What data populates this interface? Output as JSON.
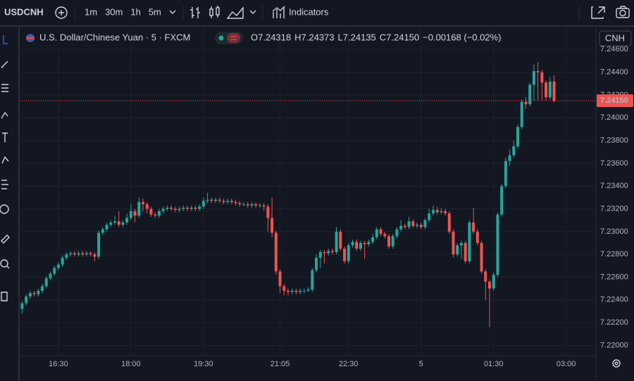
{
  "toolbar": {
    "symbol": "USDCNH",
    "intervals": [
      "1m",
      "30m",
      "1h",
      "5m"
    ],
    "active_interval": "5m",
    "indicators": "Indicators"
  },
  "chart_data": {
    "type": "candlestick",
    "title": "U.S. Dollar/Chinese Yuan · 5 · FXCM",
    "legend": [
      {
        "key": "O",
        "value": "7.24318"
      },
      {
        "key": "H",
        "value": "7.24373"
      },
      {
        "key": "L",
        "value": "7.24135"
      },
      {
        "key": "C",
        "value": "7.24150"
      }
    ],
    "change": "−0.00168 (−0.02%)",
    "currency": "CNH",
    "last_price_label": "7.24150",
    "up_color": "#26a69a",
    "down_color": "#ef5350",
    "x": [
      "15:45",
      "15:50",
      "15:55",
      "16:00",
      "16:05",
      "16:10",
      "16:15",
      "16:20",
      "16:25",
      "16:30",
      "16:35",
      "16:40",
      "16:45",
      "16:50",
      "16:55",
      "17:00",
      "17:05",
      "17:10",
      "17:15",
      "17:20",
      "17:25",
      "17:30",
      "17:35",
      "17:40",
      "17:45",
      "17:50",
      "17:55",
      "18:00",
      "18:05",
      "18:10",
      "18:15",
      "18:20",
      "18:25",
      "18:30",
      "18:35",
      "18:40",
      "18:45",
      "18:50",
      "18:55",
      "19:00",
      "19:05",
      "19:10",
      "19:15",
      "19:20",
      "19:25",
      "19:30",
      "19:35",
      "19:40",
      "19:45",
      "19:50",
      "19:55",
      "20:00",
      "20:05",
      "20:10",
      "20:15",
      "20:20",
      "20:25",
      "20:30",
      "20:35",
      "20:40",
      "20:45",
      "20:50",
      "20:55",
      "21:00",
      "21:05",
      "21:10",
      "21:15",
      "21:20",
      "21:25",
      "21:30",
      "21:35",
      "21:40",
      "21:45",
      "21:50",
      "21:55",
      "22:00",
      "22:05",
      "22:10",
      "22:15",
      "22:20",
      "22:25",
      "22:30",
      "22:35",
      "22:40",
      "22:45",
      "22:50",
      "22:55",
      "23:00",
      "23:05",
      "23:10",
      "23:15",
      "23:20",
      "23:25",
      "23:30",
      "23:35",
      "23:40",
      "23:45",
      "23:50",
      "23:55",
      "00:00",
      "00:05",
      "00:10",
      "00:15",
      "00:20",
      "00:25",
      "00:30",
      "00:35",
      "00:40",
      "00:45",
      "00:50",
      "00:55",
      "01:00",
      "01:05",
      "01:10",
      "01:15",
      "01:20",
      "01:25",
      "01:30",
      "01:35",
      "01:40",
      "01:45",
      "01:50",
      "01:55",
      "02:00",
      "02:05",
      "02:10",
      "02:15",
      "02:20",
      "02:25",
      "02:30",
      "02:35",
      "02:40",
      "02:45"
    ],
    "open": [
      7.2232,
      7.2237,
      7.2243,
      7.2246,
      7.2245,
      7.2248,
      7.2252,
      7.2259,
      7.2263,
      7.2268,
      7.2271,
      7.2277,
      7.228,
      7.2281,
      7.228,
      7.2281,
      7.228,
      7.2281,
      7.228,
      7.2278,
      7.2299,
      7.2302,
      7.2306,
      7.2308,
      7.2309,
      7.2306,
      7.2308,
      7.2312,
      7.2318,
      7.2314,
      7.2326,
      7.2324,
      7.232,
      7.2315,
      7.2314,
      7.2318,
      7.232,
      7.2321,
      7.232,
      7.2319,
      7.232,
      7.2321,
      7.232,
      7.2321,
      7.232,
      7.2322,
      7.2327,
      7.2328,
      7.2327,
      7.2328,
      7.2327,
      7.2326,
      7.2327,
      7.2326,
      7.2325,
      7.2324,
      7.2324,
      7.2323,
      7.2324,
      7.2323,
      7.2323,
      7.2322,
      7.2312,
      7.2299,
      7.2265,
      7.2252,
      7.2248,
      7.2247,
      7.2248,
      7.2247,
      7.2248,
      7.2248,
      7.2249,
      7.2266,
      7.2277,
      7.2282,
      7.2281,
      7.2283,
      7.2282,
      7.23,
      7.2285,
      7.2274,
      7.2288,
      7.2291,
      7.2285,
      7.229,
      7.2289,
      7.2291,
      7.2295,
      7.2302,
      7.2298,
      7.2296,
      7.2287,
      7.2296,
      7.2302,
      7.2305,
      7.2304,
      7.2309,
      7.2305,
      7.2306,
      7.2304,
      7.231,
      7.2316,
      7.2319,
      7.2317,
      7.2318,
      7.2316,
      7.23,
      7.228,
      7.2288,
      7.229,
      7.2274,
      7.2308,
      7.23,
      7.229,
      7.2265,
      7.2256,
      7.225,
      7.2262,
      7.2315,
      7.234,
      7.2362,
      7.2367,
      7.2375,
      7.2392,
      7.2414,
      7.2412,
      7.2429,
      7.2441,
      7.244,
      7.2431,
      7.2418,
      7.24318
    ],
    "high": [
      7.2239,
      7.2245,
      7.2248,
      7.2248,
      7.225,
      7.2254,
      7.2261,
      7.2265,
      7.227,
      7.2273,
      7.2279,
      7.2282,
      7.2283,
      7.2283,
      7.2283,
      7.2283,
      7.2283,
      7.2283,
      7.2282,
      7.2301,
      7.2304,
      7.2308,
      7.231,
      7.2314,
      7.2318,
      7.231,
      7.2316,
      7.2324,
      7.232,
      7.233,
      7.2329,
      7.2326,
      7.2322,
      7.2317,
      7.232,
      7.2322,
      7.2323,
      7.2323,
      7.2322,
      7.2322,
      7.2323,
      7.2323,
      7.2323,
      7.2323,
      7.2324,
      7.233,
      7.2334,
      7.233,
      7.233,
      7.233,
      7.2329,
      7.2329,
      7.2329,
      7.2328,
      7.2327,
      7.2326,
      7.2326,
      7.2326,
      7.2326,
      7.2325,
      7.2325,
      7.2324,
      7.233,
      7.2301,
      7.2267,
      7.2254,
      7.225,
      7.225,
      7.225,
      7.225,
      7.225,
      7.2251,
      7.2268,
      7.228,
      7.2284,
      7.2284,
      7.2285,
      7.2285,
      7.2304,
      7.2302,
      7.2287,
      7.229,
      7.2293,
      7.2293,
      7.2292,
      7.2292,
      7.2293,
      7.2298,
      7.2304,
      7.2304,
      7.23,
      7.2298,
      7.2298,
      7.2304,
      7.231,
      7.2307,
      7.2313,
      7.2311,
      7.2308,
      7.2308,
      7.2312,
      7.232,
      7.2323,
      7.2322,
      7.2321,
      7.232,
      7.2318,
      7.2302,
      7.229,
      7.2292,
      7.2292,
      7.231,
      7.2321,
      7.2302,
      7.2292,
      7.2267,
      7.2258,
      7.2264,
      7.2317,
      7.2342,
      7.2365,
      7.2372,
      7.238,
      7.2394,
      7.2416,
      7.2418,
      7.2431,
      7.2447,
      7.2449,
      7.2442,
      7.2433,
      7.2436,
      7.24373
    ],
    "low": [
      7.2228,
      7.2235,
      7.2241,
      7.2243,
      7.2243,
      7.2246,
      7.225,
      7.2257,
      7.2261,
      7.2266,
      7.2269,
      7.2275,
      7.2278,
      7.2278,
      7.2278,
      7.2278,
      7.2278,
      7.2278,
      7.2274,
      7.2276,
      7.2297,
      7.23,
      7.2304,
      7.2306,
      7.2304,
      7.2304,
      7.2306,
      7.231,
      7.2308,
      7.2312,
      7.2318,
      7.2316,
      7.2313,
      7.2312,
      7.2312,
      7.2316,
      7.2318,
      7.2318,
      7.2317,
      7.2317,
      7.2318,
      7.2318,
      7.2318,
      7.2318,
      7.2318,
      7.232,
      7.2325,
      7.2325,
      7.2325,
      7.2325,
      7.2324,
      7.2324,
      7.2324,
      7.2323,
      7.2322,
      7.2322,
      7.2321,
      7.2321,
      7.2321,
      7.2321,
      7.2318,
      7.23,
      7.2295,
      7.2262,
      7.2246,
      7.2244,
      7.2244,
      7.2245,
      7.2245,
      7.2245,
      7.2246,
      7.2247,
      7.2247,
      7.2264,
      7.2268,
      7.2272,
      7.2279,
      7.228,
      7.228,
      7.2283,
      7.2272,
      7.2272,
      7.2286,
      7.2283,
      7.2283,
      7.2276,
      7.2287,
      7.2289,
      7.2293,
      7.2296,
      7.2294,
      7.2285,
      7.2285,
      7.2294,
      7.23,
      7.2302,
      7.2302,
      7.2303,
      7.2303,
      7.2302,
      7.2302,
      7.2308,
      7.2314,
      7.2315,
      7.2315,
      7.2314,
      7.2298,
      7.2277,
      7.2278,
      7.2276,
      7.2272,
      7.2272,
      7.2298,
      7.2288,
      7.2263,
      7.224,
      7.2216,
      7.2248,
      7.226,
      7.2313,
      7.2338,
      7.2358,
      7.2365,
      7.2373,
      7.239,
      7.2408,
      7.241,
      7.2415,
      7.2415,
      7.2415,
      7.2415,
      7.2416,
      7.24135
    ],
    "close": [
      7.2237,
      7.2243,
      7.2246,
      7.2245,
      7.2248,
      7.2252,
      7.2259,
      7.2263,
      7.2268,
      7.2271,
      7.2277,
      7.228,
      7.2281,
      7.228,
      7.2281,
      7.228,
      7.2281,
      7.228,
      7.2278,
      7.2299,
      7.2302,
      7.2306,
      7.2308,
      7.2309,
      7.2306,
      7.2308,
      7.2312,
      7.2318,
      7.2314,
      7.2326,
      7.2324,
      7.232,
      7.2315,
      7.2314,
      7.2318,
      7.232,
      7.2321,
      7.232,
      7.2319,
      7.232,
      7.2321,
      7.232,
      7.2321,
      7.232,
      7.2322,
      7.2327,
      7.2328,
      7.2327,
      7.2328,
      7.2327,
      7.2326,
      7.2327,
      7.2326,
      7.2325,
      7.2324,
      7.2324,
      7.2323,
      7.2324,
      7.2323,
      7.2323,
      7.2322,
      7.2312,
      7.2299,
      7.2265,
      7.2252,
      7.2248,
      7.2247,
      7.2248,
      7.2247,
      7.2248,
      7.2248,
      7.2249,
      7.2266,
      7.2277,
      7.2282,
      7.2281,
      7.2283,
      7.2282,
      7.23,
      7.2285,
      7.2274,
      7.2288,
      7.2291,
      7.2285,
      7.229,
      7.2289,
      7.2291,
      7.2295,
      7.2302,
      7.2298,
      7.2296,
      7.2287,
      7.2296,
      7.2302,
      7.2305,
      7.2304,
      7.2309,
      7.2305,
      7.2306,
      7.2304,
      7.231,
      7.2316,
      7.2319,
      7.2317,
      7.2318,
      7.2316,
      7.23,
      7.228,
      7.2288,
      7.229,
      7.2274,
      7.2308,
      7.23,
      7.229,
      7.2265,
      7.2256,
      7.225,
      7.2262,
      7.2315,
      7.234,
      7.2362,
      7.2367,
      7.2375,
      7.2392,
      7.2414,
      7.2412,
      7.2429,
      7.2441,
      7.244,
      7.2431,
      7.2418,
      7.24318,
      7.2415
    ],
    "xlim": [
      "15:42",
      "03:37"
    ],
    "ylim": [
      7.2191,
      7.248
    ],
    "xticks": [
      "16:30",
      "18:00",
      "19:30",
      "21:05",
      "22:30",
      {
        "value": "00:00",
        "label": "5"
      },
      "01:30",
      "03:00"
    ],
    "yticks": [
      {
        "value": 7.22,
        "label": "7.22000"
      },
      {
        "value": 7.222,
        "label": "7.22200"
      },
      {
        "value": 7.224,
        "label": "7.22400"
      },
      {
        "value": 7.226,
        "label": "7.22600"
      },
      {
        "value": 7.228,
        "label": "7.22800"
      },
      {
        "value": 7.23,
        "label": "7.23000"
      },
      {
        "value": 7.232,
        "label": "7.23200"
      },
      {
        "value": 7.234,
        "label": "7.23400"
      },
      {
        "value": 7.236,
        "label": "7.23600"
      },
      {
        "value": 7.238,
        "label": "7.23800"
      },
      {
        "value": 7.24,
        "label": "7.24000"
      },
      {
        "value": 7.242,
        "label": "7.24200"
      },
      {
        "value": 7.244,
        "label": "7.24400"
      },
      {
        "value": 7.246,
        "label": "7.24600"
      }
    ],
    "grid": true
  }
}
